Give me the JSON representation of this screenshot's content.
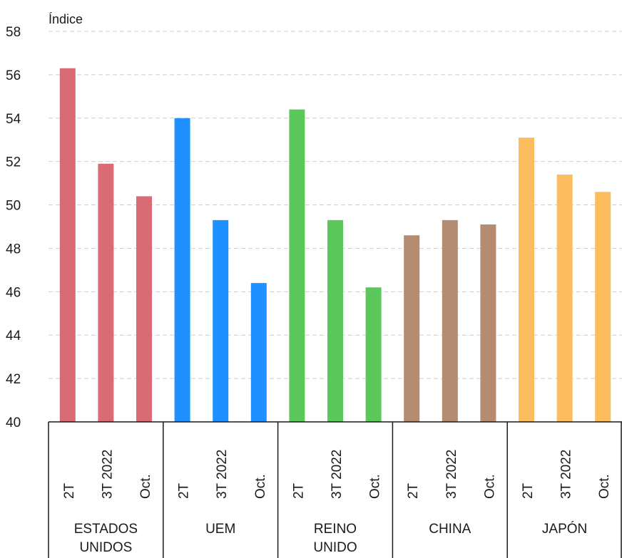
{
  "chart_data": {
    "type": "bar",
    "ylabel": "Índice",
    "ylim": [
      40,
      58
    ],
    "yticks": [
      40,
      42,
      44,
      46,
      48,
      50,
      52,
      54,
      56,
      58
    ],
    "grid": true,
    "legend": "none",
    "categories": [
      "2T",
      "3T 2022",
      "Oct."
    ],
    "groups": [
      {
        "name": [
          "ESTADOS",
          "UNIDOS"
        ],
        "color": "#d96b77",
        "values": [
          56.3,
          51.9,
          50.4
        ]
      },
      {
        "name": [
          "UEM"
        ],
        "color": "#1e90ff",
        "values": [
          54.0,
          49.3,
          46.4
        ]
      },
      {
        "name": [
          "REINO",
          "UNIDO"
        ],
        "color": "#5cc85c",
        "values": [
          54.4,
          49.3,
          46.2
        ]
      },
      {
        "name": [
          "CHINA"
        ],
        "color": "#b38c72",
        "values": [
          48.6,
          49.3,
          49.1
        ]
      },
      {
        "name": [
          "JAPÓN"
        ],
        "color": "#fbbd5e",
        "values": [
          53.1,
          51.4,
          50.6
        ]
      }
    ]
  }
}
